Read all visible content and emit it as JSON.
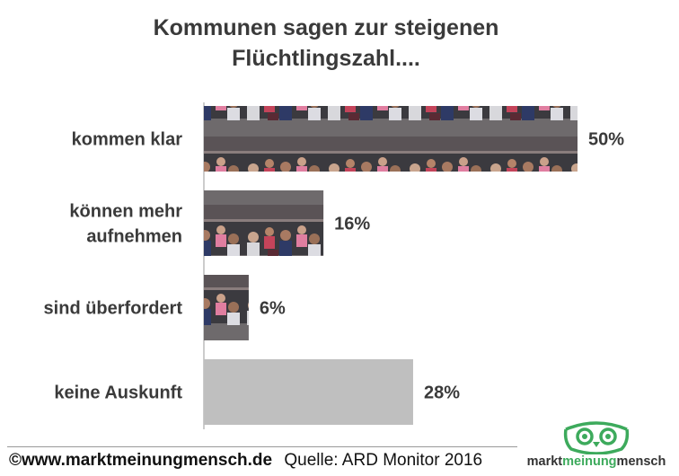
{
  "title": {
    "line1": "Kommunen sagen zur steigenen",
    "line2": "Flüchtlingszahl...."
  },
  "chart_data": {
    "type": "bar",
    "orientation": "horizontal",
    "title": "Kommunen sagen zur steigenen Flüchtlingszahl....",
    "categories": [
      [
        "kommen klar"
      ],
      [
        "können mehr",
        "aufnehmen"
      ],
      [
        "sind überfordert"
      ],
      [
        "keine Auskunft"
      ]
    ],
    "values": [
      50,
      16,
      6,
      28
    ],
    "value_labels": [
      "50%",
      "16%",
      "6%",
      "28%"
    ],
    "unit": "%",
    "xlim": [
      0,
      50
    ],
    "grid": false,
    "legend": "none",
    "bar_fills": [
      "photo",
      "photo",
      "photo",
      "solid"
    ],
    "colors": {
      "solid_bar": "#bfbfbf",
      "axis": "#9a9a9a"
    }
  },
  "footer": {
    "copyright": "©www.marktmeinungmensch.de",
    "source": "Quelle: ARD Monitor 2016"
  },
  "logo": {
    "word1": "markt",
    "word2": "meinung",
    "word3": "mensch",
    "color": "#3daa5c"
  }
}
